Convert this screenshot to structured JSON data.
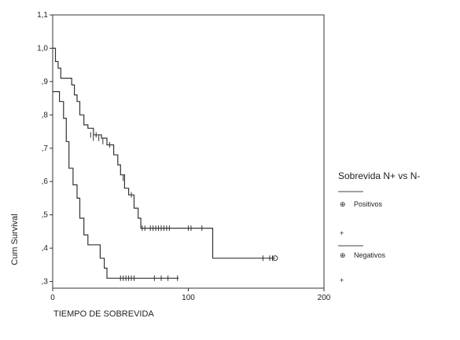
{
  "chart_data": {
    "type": "line",
    "title": "",
    "xlabel": "TIEMPO DE SOBREVIDA",
    "ylabel": "Cum Survival",
    "xlim": [
      0,
      200
    ],
    "ylim": [
      0.28,
      1.1
    ],
    "x_ticks": [
      0,
      100,
      200
    ],
    "x_tick_labels": [
      "0",
      "100",
      "200"
    ],
    "y_ticks": [
      0.3,
      0.4,
      0.5,
      0.6,
      0.7,
      0.8,
      0.9,
      1.0,
      1.1
    ],
    "y_tick_labels": [
      ",3",
      ",4",
      ",5",
      ",6",
      ",7",
      ",8",
      ",9",
      "1,0",
      "1,1"
    ],
    "grid": false,
    "legend": {
      "title": "Sobrevida N+ vs N-",
      "placement": "right",
      "items": [
        "Positivos",
        "+",
        "Negativos",
        "+"
      ]
    },
    "series": [
      {
        "name": "Positivos",
        "style": "step",
        "color": "#333333",
        "steps": [
          [
            0,
            0.87
          ],
          [
            5,
            0.87
          ],
          [
            5,
            0.84
          ],
          [
            8,
            0.84
          ],
          [
            8,
            0.79
          ],
          [
            10,
            0.79
          ],
          [
            10,
            0.72
          ],
          [
            12,
            0.72
          ],
          [
            12,
            0.64
          ],
          [
            15,
            0.64
          ],
          [
            15,
            0.59
          ],
          [
            18,
            0.59
          ],
          [
            18,
            0.55
          ],
          [
            20,
            0.55
          ],
          [
            20,
            0.49
          ],
          [
            23,
            0.49
          ],
          [
            23,
            0.44
          ],
          [
            26,
            0.44
          ],
          [
            26,
            0.41
          ],
          [
            35,
            0.41
          ],
          [
            35,
            0.37
          ],
          [
            38,
            0.37
          ],
          [
            38,
            0.34
          ],
          [
            40,
            0.34
          ],
          [
            40,
            0.31
          ],
          [
            93,
            0.31
          ]
        ],
        "censored": [
          [
            50,
            0.31
          ],
          [
            52,
            0.31
          ],
          [
            54,
            0.31
          ],
          [
            56,
            0.31
          ],
          [
            58,
            0.31
          ],
          [
            60,
            0.31
          ],
          [
            75,
            0.31
          ],
          [
            80,
            0.31
          ],
          [
            85,
            0.31
          ],
          [
            92,
            0.31
          ]
        ]
      },
      {
        "name": "Negativos",
        "style": "step",
        "color": "#333333",
        "steps": [
          [
            0,
            1.0
          ],
          [
            2,
            1.0
          ],
          [
            2,
            0.96
          ],
          [
            4,
            0.96
          ],
          [
            4,
            0.94
          ],
          [
            6,
            0.94
          ],
          [
            6,
            0.91
          ],
          [
            14,
            0.91
          ],
          [
            14,
            0.89
          ],
          [
            16,
            0.89
          ],
          [
            16,
            0.86
          ],
          [
            18,
            0.86
          ],
          [
            18,
            0.84
          ],
          [
            20,
            0.84
          ],
          [
            20,
            0.8
          ],
          [
            23,
            0.8
          ],
          [
            23,
            0.77
          ],
          [
            26,
            0.77
          ],
          [
            26,
            0.76
          ],
          [
            30,
            0.76
          ],
          [
            30,
            0.74
          ],
          [
            36,
            0.74
          ],
          [
            36,
            0.73
          ],
          [
            40,
            0.73
          ],
          [
            40,
            0.71
          ],
          [
            45,
            0.71
          ],
          [
            45,
            0.68
          ],
          [
            48,
            0.68
          ],
          [
            48,
            0.65
          ],
          [
            50,
            0.65
          ],
          [
            50,
            0.62
          ],
          [
            53,
            0.62
          ],
          [
            53,
            0.58
          ],
          [
            56,
            0.58
          ],
          [
            56,
            0.56
          ],
          [
            60,
            0.56
          ],
          [
            60,
            0.52
          ],
          [
            63,
            0.52
          ],
          [
            63,
            0.49
          ],
          [
            65,
            0.49
          ],
          [
            65,
            0.46
          ],
          [
            118,
            0.46
          ],
          [
            118,
            0.37
          ],
          [
            164,
            0.37
          ]
        ],
        "censored": [
          [
            28,
            0.74
          ],
          [
            30,
            0.73
          ],
          [
            32,
            0.74
          ],
          [
            34,
            0.73
          ],
          [
            37,
            0.72
          ],
          [
            42,
            0.71
          ],
          [
            52,
            0.61
          ],
          [
            58,
            0.56
          ],
          [
            66,
            0.46
          ],
          [
            68,
            0.46
          ],
          [
            72,
            0.46
          ],
          [
            74,
            0.46
          ],
          [
            76,
            0.46
          ],
          [
            78,
            0.46
          ],
          [
            80,
            0.46
          ],
          [
            82,
            0.46
          ],
          [
            84,
            0.46
          ],
          [
            86,
            0.46
          ],
          [
            100,
            0.46
          ],
          [
            102,
            0.46
          ],
          [
            110,
            0.46
          ],
          [
            155,
            0.37
          ],
          [
            160,
            0.37
          ],
          [
            162,
            0.37
          ]
        ]
      }
    ]
  }
}
